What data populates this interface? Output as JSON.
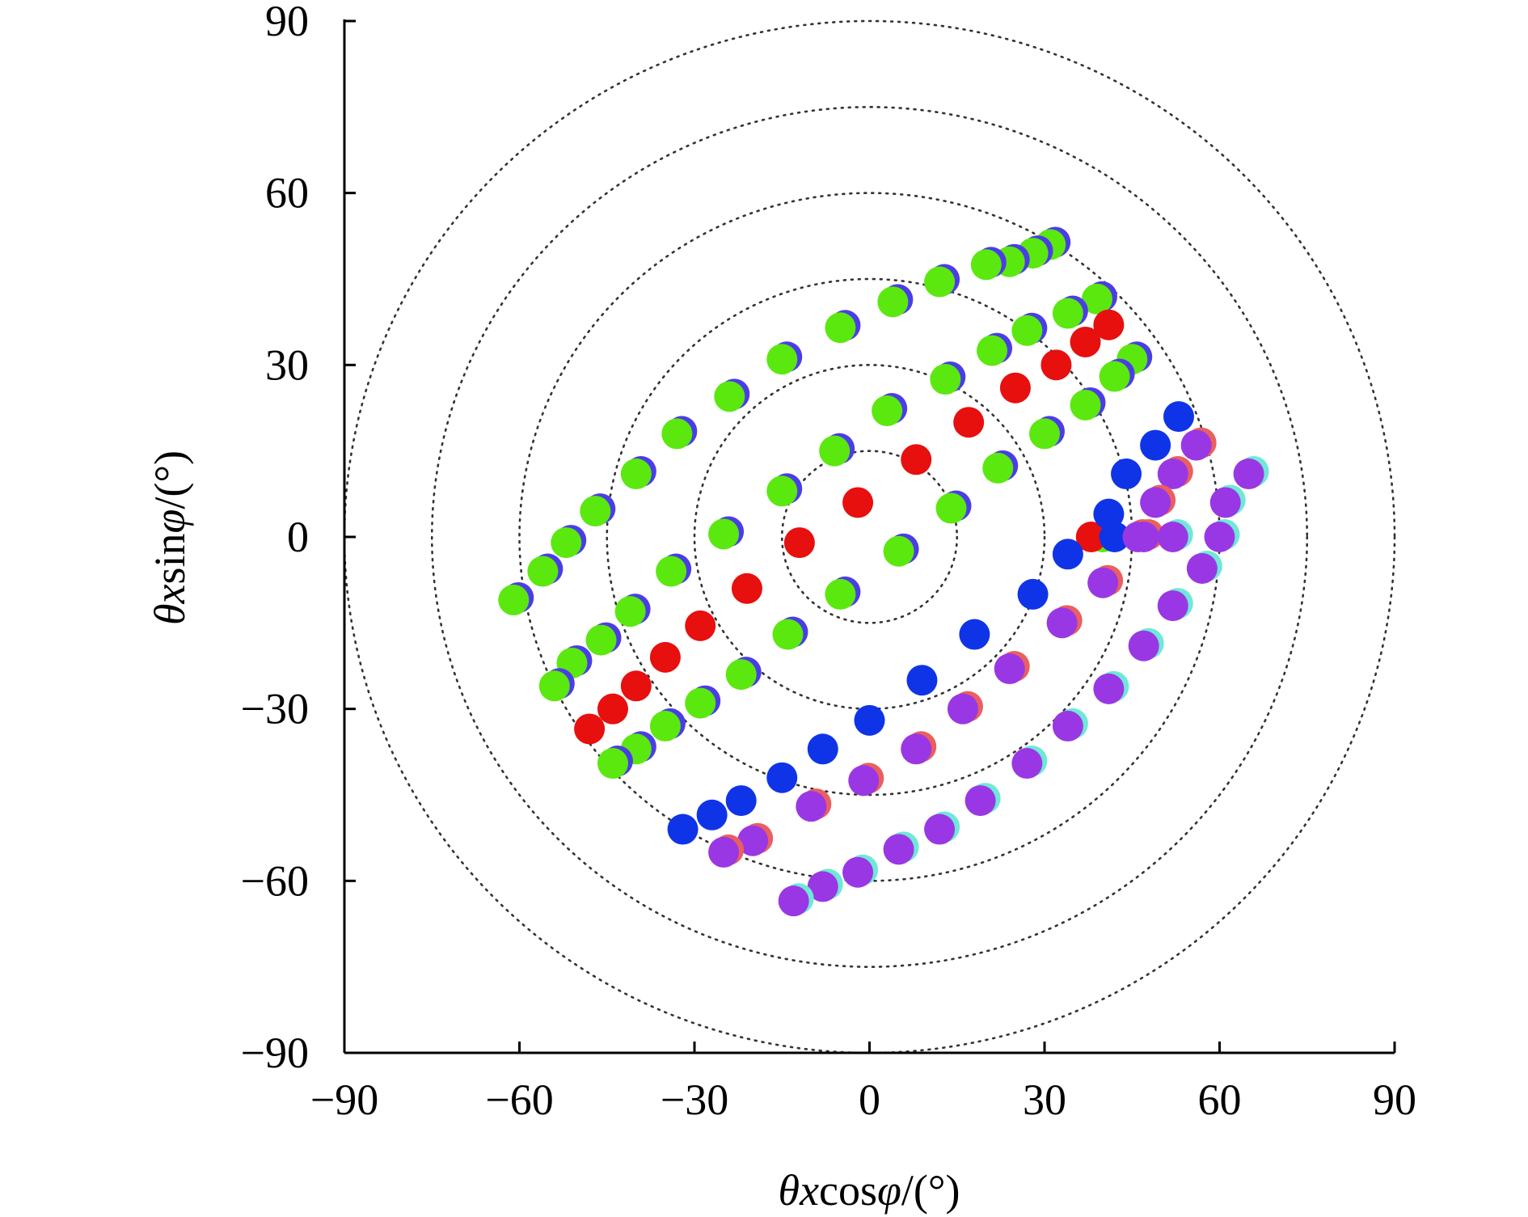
{
  "chart_data": {
    "type": "scatter",
    "title": "",
    "xlabel_parts": [
      "θ",
      "x",
      "cos",
      "φ",
      "/(°)"
    ],
    "ylabel_parts": [
      "θ",
      "x",
      "sin",
      "φ",
      "/(°)"
    ],
    "xlim": [
      -90,
      90
    ],
    "ylim": [
      -90,
      90
    ],
    "xticks": [
      -90,
      -60,
      -30,
      0,
      30,
      60,
      90
    ],
    "yticks": [
      -90,
      -60,
      -30,
      0,
      30,
      60,
      90
    ],
    "xtick_labels": [
      "−90",
      "−60",
      "−30",
      "0",
      "30",
      "60",
      "90"
    ],
    "ytick_labels": [
      "−90",
      "−60",
      "−30",
      "0",
      "30",
      "60",
      "90"
    ],
    "reference_circles": {
      "center": [
        0,
        0
      ],
      "radii": [
        15,
        30,
        45,
        60,
        75,
        90
      ],
      "style": "dotted"
    },
    "grid": false,
    "series": [
      {
        "name": "green",
        "color": "#5BE80F",
        "shadow_color": "#4B3DE6",
        "points": [
          [
            31,
            51
          ],
          [
            28,
            49.5
          ],
          [
            24,
            48
          ],
          [
            20,
            47.5
          ],
          [
            12,
            44.5
          ],
          [
            4,
            41
          ],
          [
            -5,
            36.5
          ],
          [
            -15,
            31
          ],
          [
            -24,
            24.5
          ],
          [
            -33,
            18
          ],
          [
            -40,
            11
          ],
          [
            -47,
            4.5
          ],
          [
            -52,
            -1
          ],
          [
            -56,
            -6
          ],
          [
            -61,
            -11
          ],
          [
            39,
            41.5
          ],
          [
            34,
            39
          ],
          [
            27,
            36
          ],
          [
            21,
            32.5
          ],
          [
            13,
            27.5
          ],
          [
            3,
            22
          ],
          [
            -6,
            15
          ],
          [
            -15,
            8
          ],
          [
            -25,
            0.5
          ],
          [
            -34,
            -6
          ],
          [
            -41,
            -13
          ],
          [
            -46,
            -18
          ],
          [
            -51,
            -22
          ],
          [
            -54,
            -26
          ],
          [
            45,
            31
          ],
          [
            42,
            28
          ],
          [
            37,
            23
          ],
          [
            30,
            18
          ],
          [
            22,
            12
          ],
          [
            14,
            5
          ],
          [
            5,
            -2.5
          ],
          [
            -5,
            -10
          ],
          [
            -14,
            -17
          ],
          [
            -22,
            -24
          ],
          [
            -29,
            -29
          ],
          [
            -35,
            -33
          ],
          [
            -40,
            -37
          ],
          [
            -44,
            -39.5
          ],
          [
            40,
            0
          ]
        ]
      },
      {
        "name": "red",
        "color": "#E80F0F",
        "points": [
          [
            41,
            37
          ],
          [
            37,
            34
          ],
          [
            32,
            30
          ],
          [
            25,
            26
          ],
          [
            17,
            20
          ],
          [
            8,
            13.5
          ],
          [
            -2,
            6
          ],
          [
            -12,
            -1
          ],
          [
            -21,
            -9
          ],
          [
            -29,
            -15.5
          ],
          [
            -35,
            -21
          ],
          [
            -40,
            -26
          ],
          [
            -44,
            -30
          ],
          [
            -48,
            -33.5
          ],
          [
            38,
            0
          ]
        ]
      },
      {
        "name": "blue",
        "color": "#0F34E8",
        "points": [
          [
            53,
            21
          ],
          [
            49,
            16
          ],
          [
            44,
            11
          ],
          [
            41,
            4
          ],
          [
            34,
            -3
          ],
          [
            28,
            -10
          ],
          [
            18,
            -17
          ],
          [
            9,
            -25
          ],
          [
            0,
            -32
          ],
          [
            -8,
            -37
          ],
          [
            -15,
            -42
          ],
          [
            -22,
            -46
          ],
          [
            -27,
            -48.5
          ],
          [
            -32,
            -51
          ],
          [
            42,
            0
          ]
        ]
      },
      {
        "name": "purple",
        "color": "#9A37E4",
        "shadow_color": "#EA5F5F",
        "points": [
          [
            56,
            16
          ],
          [
            52,
            11
          ],
          [
            49,
            6
          ],
          [
            46,
            0
          ],
          [
            40,
            -8
          ],
          [
            33,
            -15
          ],
          [
            24,
            -23
          ],
          [
            16,
            -30
          ],
          [
            8,
            -37
          ],
          [
            -1,
            -42.5
          ],
          [
            -10,
            -47
          ],
          [
            -20,
            -53
          ],
          [
            -25,
            -55
          ],
          [
            47,
            0
          ]
        ]
      },
      {
        "name": "purple-outer",
        "color": "#9A37E4",
        "shadow_color": "#6FE8D8",
        "points": [
          [
            65,
            11
          ],
          [
            61,
            6
          ],
          [
            60,
            0
          ],
          [
            57,
            -5.5
          ],
          [
            52,
            -12
          ],
          [
            47,
            -19
          ],
          [
            41,
            -26.5
          ],
          [
            34,
            -33
          ],
          [
            27,
            -39.5
          ],
          [
            19,
            -46
          ],
          [
            12,
            -51
          ],
          [
            5,
            -54.5
          ],
          [
            -2,
            -58.5
          ],
          [
            -8,
            -61
          ],
          [
            -13,
            -63.5
          ],
          [
            52,
            0
          ]
        ]
      }
    ]
  }
}
